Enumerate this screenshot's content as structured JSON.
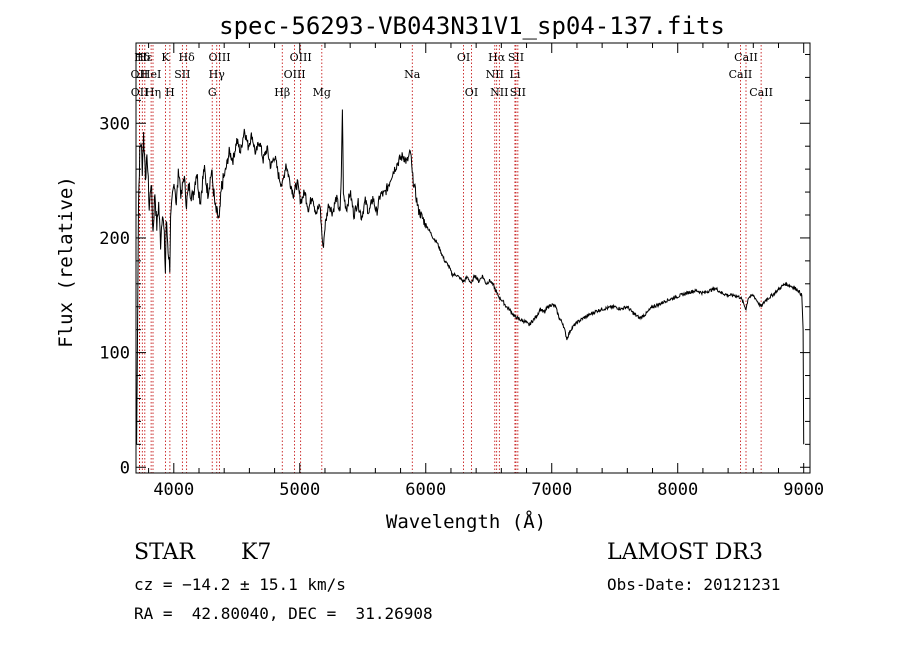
{
  "chart_data": {
    "type": "line",
    "title": "spec-56293-VB043N31V1_sp04-137.fits",
    "xlabel": "Wavelength (Å)",
    "ylabel": "Flux (relative)",
    "xlim": [
      3700,
      9050
    ],
    "ylim": [
      -5,
      370
    ],
    "xticks": [
      {
        "value": 4000,
        "label": "4000"
      },
      {
        "value": 5000,
        "label": "5000"
      },
      {
        "value": 6000,
        "label": "6000"
      },
      {
        "value": 7000,
        "label": "7000"
      },
      {
        "value": 8000,
        "label": "8000"
      },
      {
        "value": 9000,
        "label": "9000"
      }
    ],
    "yticks": [
      {
        "value": 0,
        "label": "0"
      },
      {
        "value": 100,
        "label": "100"
      },
      {
        "value": 200,
        "label": "200"
      },
      {
        "value": 300,
        "label": "300"
      }
    ],
    "series": [
      {
        "name": "flux",
        "points": [
          [
            3705,
            20
          ],
          [
            3712,
            120
          ],
          [
            3720,
            230
          ],
          [
            3730,
            275
          ],
          [
            3740,
            285
          ],
          [
            3750,
            260
          ],
          [
            3760,
            290
          ],
          [
            3775,
            255
          ],
          [
            3790,
            270
          ],
          [
            3805,
            225
          ],
          [
            3820,
            250
          ],
          [
            3835,
            205
          ],
          [
            3850,
            240
          ],
          [
            3865,
            210
          ],
          [
            3880,
            230
          ],
          [
            3895,
            195
          ],
          [
            3910,
            225
          ],
          [
            3925,
            200
          ],
          [
            3933,
            170
          ],
          [
            3940,
            215
          ],
          [
            3955,
            190
          ],
          [
            3968,
            175
          ],
          [
            3975,
            215
          ],
          [
            3990,
            235
          ],
          [
            4005,
            250
          ],
          [
            4020,
            230
          ],
          [
            4040,
            260
          ],
          [
            4060,
            235
          ],
          [
            4080,
            255
          ],
          [
            4101,
            230
          ],
          [
            4120,
            245
          ],
          [
            4150,
            235
          ],
          [
            4180,
            258
          ],
          [
            4210,
            232
          ],
          [
            4240,
            260
          ],
          [
            4270,
            240
          ],
          [
            4300,
            258
          ],
          [
            4330,
            225
          ],
          [
            4361,
            215
          ],
          [
            4380,
            245
          ],
          [
            4410,
            258
          ],
          [
            4440,
            275
          ],
          [
            4470,
            268
          ],
          [
            4500,
            285
          ],
          [
            4530,
            275
          ],
          [
            4560,
            295
          ],
          [
            4590,
            280
          ],
          [
            4620,
            290
          ],
          [
            4650,
            273
          ],
          [
            4680,
            285
          ],
          [
            4710,
            268
          ],
          [
            4740,
            278
          ],
          [
            4770,
            262
          ],
          [
            4800,
            272
          ],
          [
            4830,
            255
          ],
          [
            4861,
            245
          ],
          [
            4890,
            265
          ],
          [
            4920,
            250
          ],
          [
            4950,
            238
          ],
          [
            4980,
            248
          ],
          [
            5007,
            232
          ],
          [
            5040,
            240
          ],
          [
            5070,
            225
          ],
          [
            5100,
            238
          ],
          [
            5130,
            220
          ],
          [
            5160,
            230
          ],
          [
            5184,
            190
          ],
          [
            5200,
            210
          ],
          [
            5230,
            230
          ],
          [
            5260,
            222
          ],
          [
            5290,
            235
          ],
          [
            5320,
            222
          ],
          [
            5330,
            255
          ],
          [
            5338,
            315
          ],
          [
            5346,
            238
          ],
          [
            5370,
            225
          ],
          [
            5400,
            240
          ],
          [
            5430,
            220
          ],
          [
            5460,
            232
          ],
          [
            5490,
            218
          ],
          [
            5520,
            232
          ],
          [
            5550,
            222
          ],
          [
            5580,
            235
          ],
          [
            5610,
            222
          ],
          [
            5640,
            238
          ],
          [
            5670,
            238
          ],
          [
            5700,
            245
          ],
          [
            5730,
            255
          ],
          [
            5760,
            262
          ],
          [
            5790,
            268
          ],
          [
            5820,
            272
          ],
          [
            5850,
            266
          ],
          [
            5880,
            275
          ],
          [
            5893,
            255
          ],
          [
            5910,
            245
          ],
          [
            5940,
            225
          ],
          [
            5970,
            218
          ],
          [
            6000,
            212
          ],
          [
            6030,
            206
          ],
          [
            6060,
            200
          ],
          [
            6090,
            196
          ],
          [
            6120,
            188
          ],
          [
            6150,
            180
          ],
          [
            6180,
            176
          ],
          [
            6210,
            168
          ],
          [
            6240,
            168
          ],
          [
            6270,
            165
          ],
          [
            6300,
            162
          ],
          [
            6330,
            166
          ],
          [
            6363,
            160
          ],
          [
            6390,
            168
          ],
          [
            6420,
            162
          ],
          [
            6450,
            167
          ],
          [
            6480,
            160
          ],
          [
            6510,
            163
          ],
          [
            6540,
            158
          ],
          [
            6563,
            152
          ],
          [
            6585,
            148
          ],
          [
            6610,
            145
          ],
          [
            6640,
            140
          ],
          [
            6670,
            137
          ],
          [
            6700,
            132
          ],
          [
            6730,
            130
          ],
          [
            6760,
            128
          ],
          [
            6790,
            127
          ],
          [
            6820,
            124
          ],
          [
            6850,
            128
          ],
          [
            6880,
            132
          ],
          [
            6910,
            138
          ],
          [
            6940,
            135
          ],
          [
            6970,
            140
          ],
          [
            7000,
            142
          ],
          [
            7030,
            140
          ],
          [
            7060,
            130
          ],
          [
            7090,
            125
          ],
          [
            7120,
            112
          ],
          [
            7150,
            120
          ],
          [
            7180,
            124
          ],
          [
            7210,
            127
          ],
          [
            7250,
            130
          ],
          [
            7300,
            133
          ],
          [
            7350,
            136
          ],
          [
            7400,
            138
          ],
          [
            7450,
            139
          ],
          [
            7500,
            140
          ],
          [
            7550,
            138
          ],
          [
            7600,
            140
          ],
          [
            7650,
            134
          ],
          [
            7700,
            130
          ],
          [
            7750,
            134
          ],
          [
            7800,
            140
          ],
          [
            7850,
            142
          ],
          [
            7900,
            145
          ],
          [
            7950,
            147
          ],
          [
            8000,
            149
          ],
          [
            8050,
            151
          ],
          [
            8100,
            153
          ],
          [
            8150,
            154
          ],
          [
            8200,
            152
          ],
          [
            8250,
            154
          ],
          [
            8300,
            156
          ],
          [
            8350,
            152
          ],
          [
            8400,
            150
          ],
          [
            8450,
            150
          ],
          [
            8500,
            148
          ],
          [
            8542,
            138
          ],
          [
            8560,
            148
          ],
          [
            8600,
            150
          ],
          [
            8662,
            140
          ],
          [
            8700,
            146
          ],
          [
            8750,
            150
          ],
          [
            8800,
            155
          ],
          [
            8850,
            160
          ],
          [
            8900,
            158
          ],
          [
            8950,
            155
          ],
          [
            8985,
            150
          ],
          [
            8995,
            120
          ],
          [
            9000,
            20
          ]
        ]
      }
    ],
    "line_markers": [
      {
        "label": "Hδ",
        "wavelength": 3750,
        "row": 1
      },
      {
        "label": "OII",
        "wavelength": 3727,
        "row": 2
      },
      {
        "label": "OII",
        "wavelength": 3729,
        "row": 3
      },
      {
        "label": "Hε",
        "wavelength": 3770,
        "row": 1
      },
      {
        "label": "HeI",
        "wavelength": 3820,
        "row": 2
      },
      {
        "label": "Hη",
        "wavelength": 3835,
        "row": 3
      },
      {
        "label": "K",
        "wavelength": 3934,
        "row": 1
      },
      {
        "label": "SII",
        "wavelength": 4068,
        "row": 2
      },
      {
        "label": "H",
        "wavelength": 3969,
        "row": 3
      },
      {
        "label": "Hδ",
        "wavelength": 4102,
        "row": 1
      },
      {
        "label": "OIII",
        "wavelength": 4363,
        "row": 1
      },
      {
        "label": "Hγ",
        "wavelength": 4341,
        "row": 2
      },
      {
        "label": "G",
        "wavelength": 4305,
        "row": 3
      },
      {
        "label": "OIII",
        "wavelength": 5007,
        "row": 1
      },
      {
        "label": "OIII",
        "wavelength": 4959,
        "row": 2
      },
      {
        "label": "Hβ",
        "wavelength": 4861,
        "row": 3
      },
      {
        "label": "Mg",
        "wavelength": 5175,
        "row": 3
      },
      {
        "label": "Na",
        "wavelength": 5893,
        "row": 2
      },
      {
        "label": "OI",
        "wavelength": 6300,
        "row": 1
      },
      {
        "label": "OI",
        "wavelength": 6363,
        "row": 3
      },
      {
        "label": "Hα",
        "wavelength": 6563,
        "row": 1
      },
      {
        "label": "SII",
        "wavelength": 6716,
        "row": 1
      },
      {
        "label": "NII",
        "wavelength": 6548,
        "row": 2
      },
      {
        "label": "Li",
        "wavelength": 6708,
        "row": 2
      },
      {
        "label": "NII",
        "wavelength": 6584,
        "row": 3
      },
      {
        "label": "SII",
        "wavelength": 6731,
        "row": 3
      },
      {
        "label": "CaII",
        "wavelength": 8542,
        "row": 1
      },
      {
        "label": "CaII",
        "wavelength": 8498,
        "row": 2
      },
      {
        "label": "CaII",
        "wavelength": 8662,
        "row": 3
      }
    ]
  },
  "info": {
    "object_class": "STAR",
    "subclass": "K7",
    "survey": "LAMOST DR3",
    "cz": "cz = −14.2 ± 15.1 km/s",
    "obs_date": "Obs-Date: 20121231",
    "coords": "RA =  42.80040, DEC =  31.26908"
  },
  "colors": {
    "spectrum": "#000000",
    "marker_line": "#c00000",
    "axis": "#000000"
  }
}
